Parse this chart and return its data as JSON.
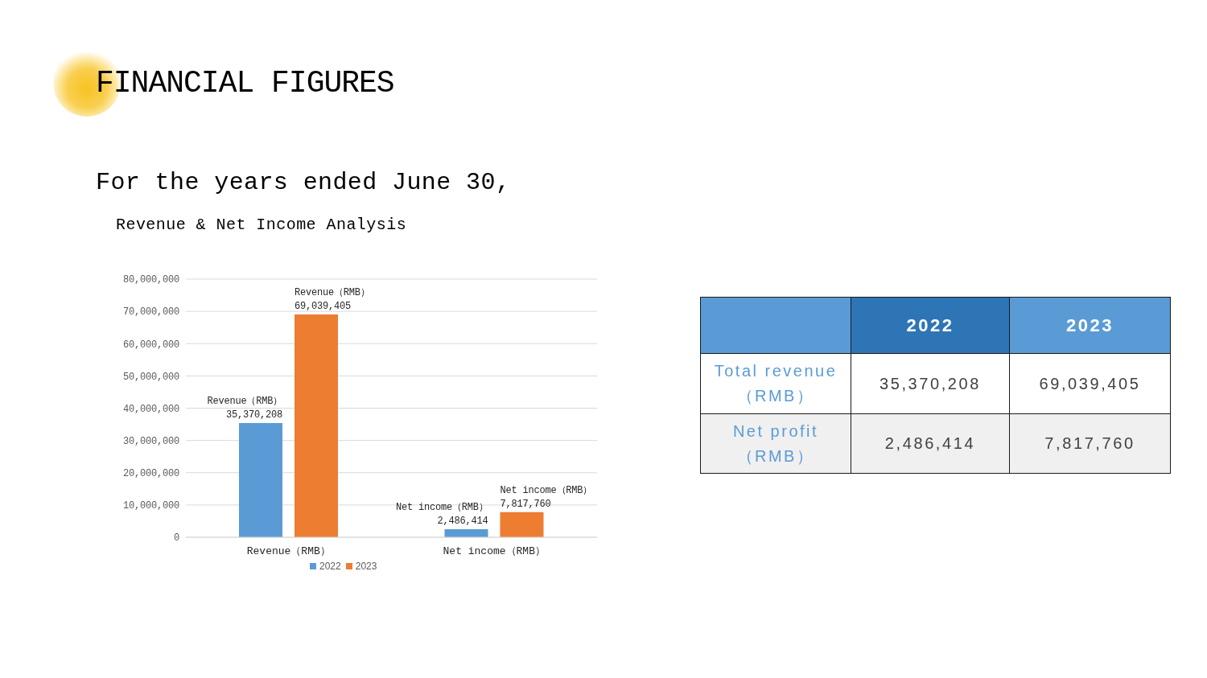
{
  "chart_data": [
    {
      "type": "bar",
      "title": "FINANCIAL FIGURES",
      "subtitle": "For the years ended June 30,",
      "annotations": [
        "Revenue & Net Income Analysis"
      ],
      "categories": [
        "Revenue（RMB）",
        "Net income（RMB）"
      ],
      "series": [
        {
          "name": "2022",
          "color": "#5b9bd5",
          "values": [
            35370208,
            2486414
          ],
          "value_labels": [
            "Revenue（RMB）\n35,370,208",
            "Net income（RMB）\n2,486,414"
          ]
        },
        {
          "name": "2023",
          "color": "#ed7d31",
          "values": [
            69039405,
            7817760
          ],
          "value_labels": [
            "Revenue（RMB）\n69,039,405",
            "Net income（RMB）\n7,817,760"
          ]
        }
      ],
      "ylim": [
        0,
        80000000
      ],
      "yticks": [
        0,
        {
          "value": 10000000,
          "label": "10,000,000"
        },
        {
          "value": 20000000,
          "label": "20,000,000"
        },
        {
          "value": 30000000,
          "label": "30,000,000"
        },
        {
          "value": 40000000,
          "label": "40,000,000"
        },
        {
          "value": 50000000,
          "label": "50,000,000"
        },
        {
          "value": 60000000,
          "label": "60,000,000"
        },
        {
          "value": 70000000,
          "label": "70,000,000"
        },
        {
          "value": 80000000,
          "label": "80,000,000"
        }
      ],
      "grid": "y",
      "legend": "bottom"
    },
    {
      "type": "other",
      "categories": [
        "2022",
        "2023"
      ],
      "colors": [
        "#2e75b6",
        "#5b9bd5"
      ],
      "y_categories": [
        "Total revenue（RMB）",
        "Net profit（RMB）"
      ],
      "cell_labels": [
        [
          "35,370,208",
          "69,039,405"
        ],
        [
          "2,486,414",
          "7,817,760"
        ]
      ]
    }
  ]
}
